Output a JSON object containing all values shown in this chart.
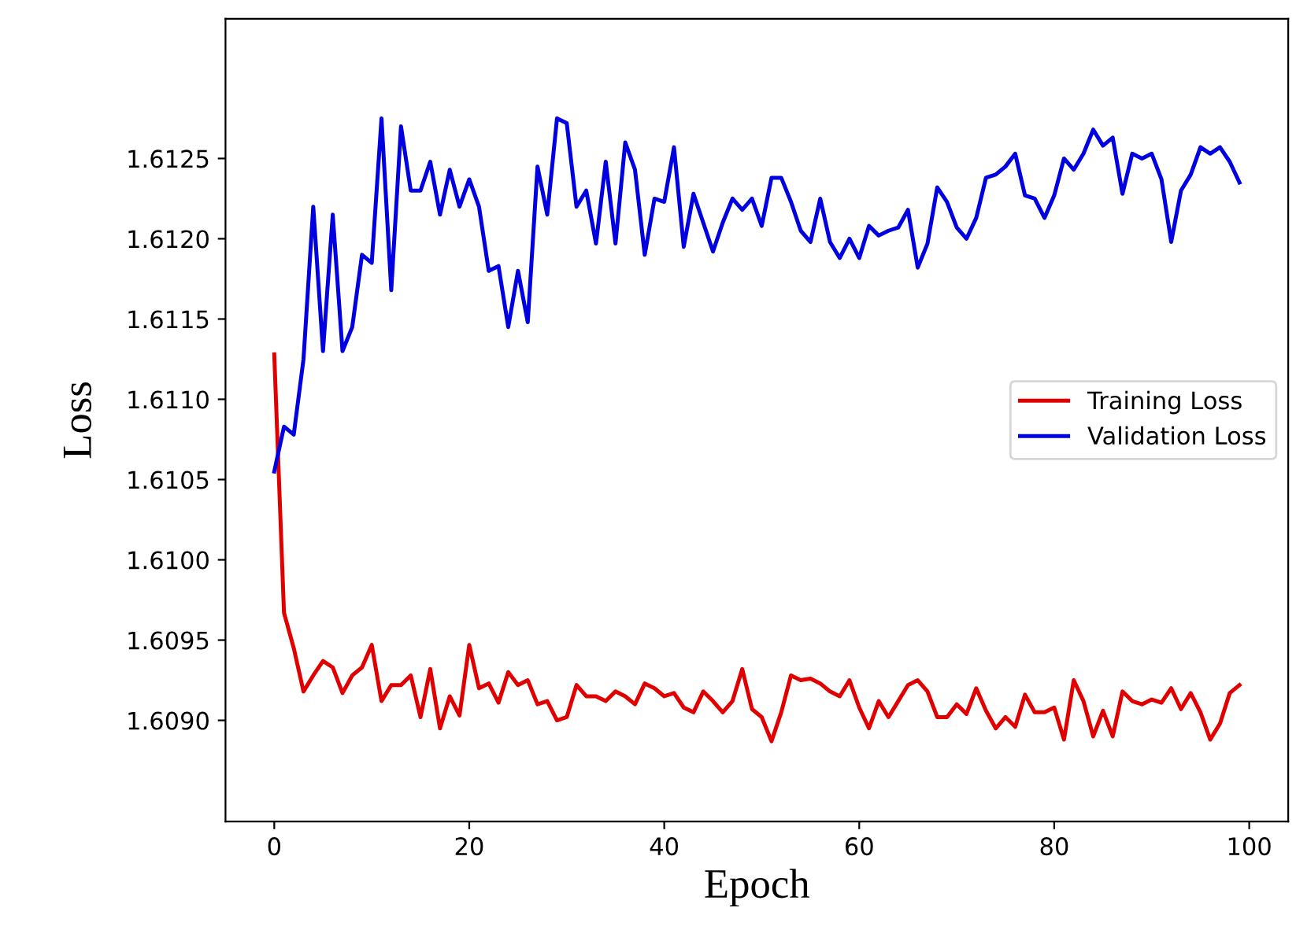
{
  "chart_data": {
    "type": "line",
    "xlabel": "Epoch",
    "ylabel": "Loss",
    "x": [
      0,
      1,
      2,
      3,
      4,
      5,
      6,
      7,
      8,
      9,
      10,
      11,
      12,
      13,
      14,
      15,
      16,
      17,
      18,
      19,
      20,
      21,
      22,
      23,
      24,
      25,
      26,
      27,
      28,
      29,
      30,
      31,
      32,
      33,
      34,
      35,
      36,
      37,
      38,
      39,
      40,
      41,
      42,
      43,
      44,
      45,
      46,
      47,
      48,
      49,
      50,
      51,
      52,
      53,
      54,
      55,
      56,
      57,
      58,
      59,
      60,
      61,
      62,
      63,
      64,
      65,
      66,
      67,
      68,
      69,
      70,
      71,
      72,
      73,
      74,
      75,
      76,
      77,
      78,
      79,
      80,
      81,
      82,
      83,
      84,
      85,
      86,
      87,
      88,
      89,
      90,
      91,
      92,
      93,
      94,
      95,
      96,
      97,
      98,
      99
    ],
    "series": [
      {
        "name": "Training Loss",
        "color": "#e00000",
        "values": [
          1.61128,
          1.60967,
          1.60945,
          1.60918,
          1.60928,
          1.60937,
          1.60933,
          1.60917,
          1.60928,
          1.60933,
          1.60947,
          1.60912,
          1.60922,
          1.60922,
          1.60928,
          1.60902,
          1.60932,
          1.60895,
          1.60915,
          1.60903,
          1.60947,
          1.6092,
          1.60923,
          1.60911,
          1.6093,
          1.60922,
          1.60925,
          1.6091,
          1.60912,
          1.609,
          1.60902,
          1.60922,
          1.60915,
          1.60915,
          1.60912,
          1.60918,
          1.60915,
          1.6091,
          1.60923,
          1.6092,
          1.60915,
          1.60917,
          1.60908,
          1.60905,
          1.60918,
          1.60912,
          1.60905,
          1.60912,
          1.60932,
          1.60907,
          1.60902,
          1.60887,
          1.60905,
          1.60928,
          1.60925,
          1.60926,
          1.60923,
          1.60918,
          1.60915,
          1.60925,
          1.60908,
          1.60895,
          1.60912,
          1.60902,
          1.60912,
          1.60922,
          1.60925,
          1.60918,
          1.60902,
          1.60902,
          1.6091,
          1.60904,
          1.6092,
          1.60906,
          1.60895,
          1.60902,
          1.60896,
          1.60916,
          1.60905,
          1.60905,
          1.60908,
          1.60888,
          1.60925,
          1.60912,
          1.6089,
          1.60906,
          1.6089,
          1.60918,
          1.60912,
          1.6091,
          1.60913,
          1.60911,
          1.6092,
          1.60907,
          1.60917,
          1.60905,
          1.60888,
          1.60898,
          1.60917,
          1.60922
        ]
      },
      {
        "name": "Validation Loss",
        "color": "#0000e0",
        "values": [
          1.61055,
          1.61083,
          1.61078,
          1.61125,
          1.6122,
          1.6113,
          1.61215,
          1.6113,
          1.61145,
          1.6119,
          1.61185,
          1.61275,
          1.61168,
          1.6127,
          1.6123,
          1.6123,
          1.61248,
          1.61215,
          1.61243,
          1.6122,
          1.61237,
          1.6122,
          1.6118,
          1.61183,
          1.61145,
          1.6118,
          1.61148,
          1.61245,
          1.61215,
          1.61275,
          1.61272,
          1.6122,
          1.6123,
          1.61197,
          1.61248,
          1.61197,
          1.6126,
          1.61243,
          1.6119,
          1.61225,
          1.61223,
          1.61257,
          1.61195,
          1.61228,
          1.6121,
          1.61192,
          1.6121,
          1.61225,
          1.61218,
          1.61225,
          1.61208,
          1.61238,
          1.61238,
          1.61223,
          1.61205,
          1.61198,
          1.61225,
          1.61198,
          1.61188,
          1.612,
          1.61188,
          1.61208,
          1.61202,
          1.61205,
          1.61207,
          1.61218,
          1.61182,
          1.61197,
          1.61232,
          1.61223,
          1.61207,
          1.612,
          1.61213,
          1.61238,
          1.6124,
          1.61245,
          1.61253,
          1.61227,
          1.61225,
          1.61213,
          1.61227,
          1.6125,
          1.61243,
          1.61253,
          1.61268,
          1.61258,
          1.61263,
          1.61228,
          1.61253,
          1.6125,
          1.61253,
          1.61237,
          1.61198,
          1.6123,
          1.6124,
          1.61257,
          1.61253,
          1.61257,
          1.61248,
          1.61235
        ]
      }
    ],
    "xlim": [
      -5,
      104
    ],
    "ylim": [
      1.60837,
      1.61337
    ],
    "xticks": [
      0,
      20,
      40,
      60,
      80,
      100
    ],
    "yticks": [
      {
        "value": 1.609,
        "label": "1.6090"
      },
      {
        "value": 1.6095,
        "label": "1.6095"
      },
      {
        "value": 1.61,
        "label": "1.6100"
      },
      {
        "value": 1.6105,
        "label": "1.6105"
      },
      {
        "value": 1.611,
        "label": "1.6110"
      },
      {
        "value": 1.6115,
        "label": "1.6115"
      },
      {
        "value": 1.612,
        "label": "1.6120"
      },
      {
        "value": 1.6125,
        "label": "1.6125"
      }
    ],
    "legend": "right",
    "grid": false,
    "marker": "none",
    "line_style": "solid"
  }
}
